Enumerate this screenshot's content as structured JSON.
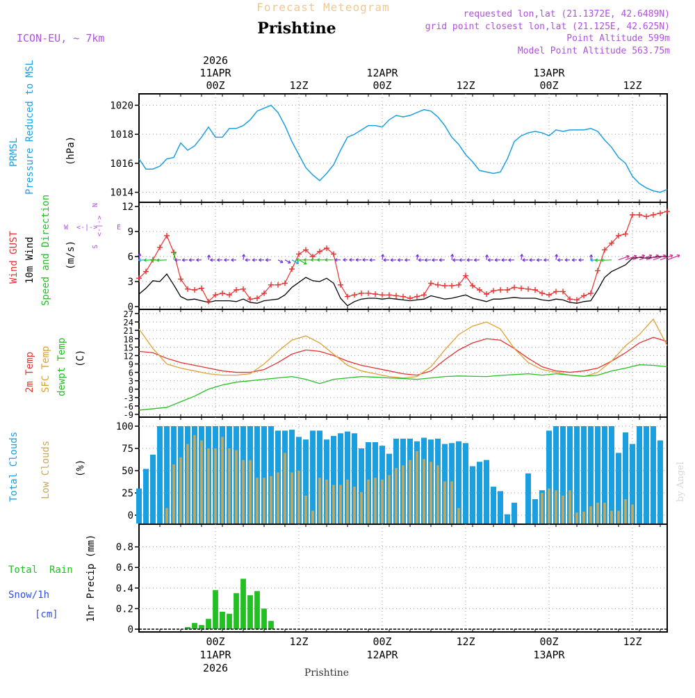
{
  "header": {
    "top_title": "Forecast Meteogram",
    "station": "Prishtine",
    "model": "ICON-EU, ~ 7km",
    "requested": "requested lon,lat (21.1372E, 42.6489N)",
    "grid_point": "grid point closest lon,lat (21.125E, 42.625N)",
    "point_alt": "Point Altitude 599m",
    "model_alt": "Model Point Altitude 563.75m",
    "footer_station": "Prishtine",
    "watermark": "by Angel"
  },
  "time_axis": {
    "year": "2026",
    "ticks": [
      {
        "h": 24,
        "label": "00Z",
        "date": "11APR",
        "year": "2026"
      },
      {
        "h": 36,
        "label": "12Z"
      },
      {
        "h": 48,
        "label": "00Z",
        "date": "12APR"
      },
      {
        "h": 60,
        "label": "12Z"
      },
      {
        "h": 72,
        "label": "00Z",
        "date": "13APR"
      },
      {
        "h": 84,
        "label": "12Z"
      }
    ],
    "start_hour": 13,
    "end_hour": 89
  },
  "labels": {
    "prmsl": "PRMSL",
    "prmsl_desc": "Pressure Reduced to MSL",
    "prmsl_unit": "(hPa)",
    "gust": "Wind GUST",
    "wind10": "10m Wind",
    "wind_dir": "Speed and Direction",
    "wind_unit": "(m/s)",
    "compass_n": "N",
    "compass_s": "S",
    "compass_w": "W",
    "compass_e": "E",
    "t2m": "2m Temp",
    "tsfc": "SFC Temp",
    "td": "dewpt Temp",
    "temp_unit": "(C)",
    "total_clouds": "Total Clouds",
    "low_clouds": "Low Clouds",
    "cloud_unit": "(%)",
    "total_rain": "Total  Rain",
    "snow": "Snow/1h",
    "snow_unit": "[cm]",
    "precip": "1hr Precip (mm)"
  },
  "colors": {
    "pressure": "#1a9fe0",
    "gust": "#e83030",
    "wind": "#000000",
    "t2m": "#e83030",
    "tsfc": "#e0a030",
    "td": "#22c022",
    "total_cloud": "#1a9fe0",
    "low_cloud": "#c8a858",
    "rain": "#22c022",
    "snow": "#3050e0",
    "magenta": "#b050e0"
  },
  "chart_data": [
    {
      "type": "line",
      "title": "PRMSL Pressure Reduced to MSL",
      "ylabel": "(hPa)",
      "ylim": [
        1013.5,
        1020.5
      ],
      "yticks": [
        1014,
        1016,
        1018,
        1020
      ],
      "x": [
        13,
        14,
        15,
        16,
        17,
        18,
        19,
        20,
        21,
        22,
        23,
        24,
        25,
        26,
        27,
        28,
        29,
        30,
        31,
        32,
        33,
        34,
        35,
        36,
        37,
        38,
        39,
        40,
        41,
        42,
        43,
        44,
        45,
        46,
        47,
        48,
        49,
        50,
        51,
        52,
        53,
        54,
        55,
        56,
        57,
        58,
        59,
        60,
        61,
        62,
        63,
        64,
        65,
        66,
        67,
        68,
        69,
        70,
        71,
        72,
        73,
        74,
        75,
        76,
        77,
        78,
        79,
        80,
        81,
        82,
        83,
        84,
        85,
        86,
        87,
        88,
        89
      ],
      "series": [
        {
          "name": "PRMSL",
          "values": [
            1016.3,
            1015.6,
            1015.6,
            1015.8,
            1016.3,
            1016.4,
            1017.4,
            1016.9,
            1017.2,
            1017.8,
            1018.5,
            1017.8,
            1017.8,
            1018.4,
            1018.4,
            1018.6,
            1019.0,
            1019.6,
            1019.8,
            1020.0,
            1019.5,
            1018.6,
            1017.5,
            1016.6,
            1015.7,
            1015.2,
            1014.8,
            1015.3,
            1015.9,
            1016.9,
            1017.8,
            1018.0,
            1018.3,
            1018.6,
            1018.6,
            1018.5,
            1019.0,
            1019.3,
            1019.2,
            1019.3,
            1019.5,
            1019.7,
            1019.6,
            1019.2,
            1018.6,
            1017.8,
            1017.3,
            1016.6,
            1016.1,
            1015.5,
            1015.4,
            1015.3,
            1015.4,
            1016.3,
            1017.5,
            1017.9,
            1018.1,
            1018.2,
            1018.1,
            1017.9,
            1018.3,
            1018.2,
            1018.3,
            1018.3,
            1018.3,
            1018.4,
            1018.2,
            1017.6,
            1017.1,
            1016.4,
            1016.0,
            1015.1,
            1014.6,
            1014.3,
            1014.1,
            1014.0,
            1014.2
          ]
        }
      ]
    },
    {
      "type": "line",
      "title": "Wind GUST / 10m Wind Speed and Direction",
      "ylabel": "(m/s)",
      "ylim": [
        0,
        12
      ],
      "yticks": [
        0,
        3,
        6,
        9,
        12
      ],
      "x": [
        13,
        14,
        15,
        16,
        17,
        18,
        19,
        20,
        21,
        22,
        23,
        24,
        25,
        26,
        27,
        28,
        29,
        30,
        31,
        32,
        33,
        34,
        35,
        36,
        37,
        38,
        39,
        40,
        41,
        42,
        43,
        44,
        45,
        46,
        47,
        48,
        49,
        50,
        51,
        52,
        53,
        54,
        55,
        56,
        57,
        58,
        59,
        60,
        61,
        62,
        63,
        64,
        65,
        66,
        67,
        68,
        69,
        70,
        71,
        72,
        73,
        74,
        75,
        76,
        77,
        78,
        79,
        80,
        81,
        82,
        83,
        84,
        85,
        86,
        87,
        88,
        89
      ],
      "series": [
        {
          "name": "Wind GUST",
          "values": [
            3.4,
            4.2,
            5.6,
            7.1,
            8.5,
            6.5,
            3.3,
            2.1,
            2.0,
            2.2,
            0.6,
            1.4,
            1.6,
            1.4,
            2.0,
            2.1,
            0.9,
            1.0,
            1.6,
            2.6,
            2.6,
            2.8,
            4.5,
            6.3,
            6.8,
            6.0,
            6.6,
            7.0,
            6.3,
            2.6,
            1.2,
            1.4,
            1.6,
            1.6,
            1.5,
            1.4,
            1.4,
            1.3,
            1.2,
            1.0,
            1.2,
            1.4,
            2.8,
            2.6,
            2.5,
            2.5,
            2.6,
            3.7,
            2.5,
            2.0,
            1.5,
            1.9,
            2.0,
            2.0,
            2.3,
            2.2,
            2.1,
            2.0,
            1.6,
            1.4,
            1.8,
            1.8,
            0.9,
            0.8,
            1.3,
            1.6,
            4.3,
            6.8,
            7.6,
            8.5,
            8.7,
            11.0,
            11.0,
            10.8,
            11.0,
            11.2,
            11.4
          ]
        },
        {
          "name": "10m Wind",
          "values": [
            1.5,
            2.2,
            3.1,
            3.0,
            3.9,
            2.6,
            1.2,
            0.8,
            0.9,
            0.7,
            0.5,
            0.7,
            0.7,
            0.7,
            0.6,
            0.9,
            0.5,
            0.4,
            0.7,
            0.8,
            0.9,
            1.4,
            2.3,
            2.9,
            3.5,
            3.1,
            3.0,
            3.4,
            2.8,
            1.0,
            0.1,
            0.6,
            0.9,
            1.0,
            1.0,
            0.9,
            1.0,
            0.9,
            0.8,
            0.7,
            0.8,
            0.9,
            1.3,
            1.1,
            0.9,
            1.0,
            1.2,
            1.4,
            1.0,
            0.8,
            0.6,
            0.9,
            0.9,
            1.0,
            1.1,
            1.0,
            1.0,
            1.0,
            0.8,
            0.7,
            0.9,
            0.8,
            0.5,
            0.4,
            0.6,
            0.7,
            2.0,
            3.5,
            4.2,
            4.6,
            5.0,
            5.8,
            5.9,
            5.8,
            5.9,
            6.0,
            6.0
          ]
        }
      ]
    },
    {
      "type": "line",
      "title": "2m Temp / SFC Temp / dewpt Temp",
      "ylabel": "(C)",
      "ylim": [
        -9,
        27
      ],
      "yticks": [
        -9,
        -6,
        -3,
        0,
        3,
        6,
        9,
        12,
        15,
        18,
        21,
        24,
        27
      ],
      "x": [
        13,
        15,
        17,
        19,
        21,
        23,
        25,
        27,
        29,
        31,
        33,
        35,
        37,
        39,
        41,
        43,
        45,
        47,
        49,
        51,
        53,
        55,
        57,
        59,
        61,
        63,
        65,
        67,
        69,
        71,
        73,
        75,
        77,
        79,
        81,
        83,
        85,
        87,
        89
      ],
      "series": [
        {
          "name": "2m Temp",
          "values": [
            13.5,
            13.0,
            11.0,
            9.5,
            8.5,
            7.5,
            6.5,
            6.0,
            6.0,
            7.0,
            9.5,
            12.5,
            14.0,
            13.5,
            12.0,
            10.0,
            8.5,
            7.5,
            6.5,
            5.5,
            5.0,
            6.5,
            10.5,
            14.0,
            16.5,
            18.0,
            17.5,
            14.5,
            11.0,
            8.0,
            6.5,
            6.0,
            6.5,
            7.5,
            10.0,
            13.0,
            16.5,
            18.5,
            17.0
          ]
        },
        {
          "name": "SFC Temp",
          "values": [
            21.5,
            14.5,
            9.0,
            7.5,
            6.5,
            5.5,
            5.0,
            5.0,
            5.5,
            9.0,
            13.5,
            17.5,
            19.0,
            16.5,
            12.5,
            8.5,
            6.5,
            5.5,
            4.5,
            4.0,
            4.5,
            8.0,
            14.0,
            19.5,
            22.5,
            24.0,
            21.5,
            14.5,
            9.5,
            7.0,
            6.0,
            5.0,
            4.5,
            6.0,
            10.0,
            15.5,
            19.5,
            25.0,
            15.5
          ]
        },
        {
          "name": "dewpt Temp",
          "values": [
            -7.5,
            -7.0,
            -6.5,
            -4.5,
            -2.5,
            0.0,
            1.5,
            2.5,
            3.0,
            3.5,
            4.0,
            4.5,
            3.5,
            2.0,
            3.5,
            4.0,
            4.5,
            4.3,
            4.0,
            3.8,
            3.5,
            4.0,
            4.5,
            4.7,
            4.6,
            4.5,
            4.9,
            5.2,
            5.5,
            5.0,
            5.5,
            5.0,
            4.6,
            5.0,
            6.5,
            7.5,
            8.7,
            8.5,
            8.0
          ]
        }
      ]
    },
    {
      "type": "bar",
      "title": "Total Clouds / Low Clouds",
      "ylabel": "(%)",
      "ylim": [
        0,
        100
      ],
      "yticks": [
        0,
        25,
        50,
        75,
        100
      ],
      "x": [
        13,
        14,
        15,
        16,
        17,
        18,
        19,
        20,
        21,
        22,
        23,
        24,
        25,
        26,
        27,
        28,
        29,
        30,
        31,
        32,
        33,
        34,
        35,
        36,
        37,
        38,
        39,
        40,
        41,
        42,
        43,
        44,
        45,
        46,
        47,
        48,
        49,
        50,
        51,
        52,
        53,
        54,
        55,
        56,
        57,
        58,
        59,
        60,
        61,
        62,
        63,
        64,
        65,
        66,
        67,
        68,
        69,
        70,
        71,
        72,
        73,
        74,
        75,
        76,
        77,
        78,
        79,
        80,
        81,
        82,
        83,
        84,
        85,
        86,
        87,
        88,
        89
      ],
      "series": [
        {
          "name": "Total Clouds",
          "values": [
            30,
            52,
            68,
            100,
            100,
            100,
            100,
            100,
            100,
            100,
            100,
            100,
            100,
            100,
            100,
            100,
            100,
            100,
            100,
            100,
            95,
            95,
            96,
            88,
            85,
            95,
            95,
            85,
            89,
            92,
            94,
            92,
            75,
            82,
            82,
            78,
            69,
            86,
            86,
            86,
            83,
            87,
            85,
            86,
            80,
            81,
            83,
            81,
            55,
            60,
            62,
            32,
            27,
            1,
            14,
            0,
            47,
            18,
            28,
            95,
            100,
            100,
            100,
            100,
            100,
            100,
            100,
            100,
            100,
            70,
            93,
            80,
            100,
            100,
            100,
            84,
            0
          ]
        },
        {
          "name": "Low Clouds",
          "values": [
            0,
            0,
            0,
            0,
            8,
            57,
            65,
            80,
            90,
            84,
            75,
            75,
            88,
            75,
            73,
            62,
            62,
            42,
            42,
            44,
            48,
            70,
            48,
            50,
            22,
            5,
            42,
            40,
            34,
            34,
            40,
            32,
            26,
            40,
            42,
            40,
            45,
            53,
            56,
            62,
            72,
            63,
            60,
            56,
            38,
            38,
            8,
            0,
            0,
            0,
            0,
            0,
            0,
            0,
            0,
            0,
            0,
            0,
            25,
            30,
            28,
            22,
            28,
            3,
            4,
            10,
            14,
            14,
            5,
            5,
            18,
            12,
            0,
            0,
            0,
            0,
            0
          ]
        }
      ]
    },
    {
      "type": "bar",
      "title": "Total Rain / Snow per 1h",
      "ylabel": "1hr Precip (mm)",
      "ylim": [
        0,
        0.98
      ],
      "yticks": [
        0,
        0.2,
        0.4,
        0.6,
        0.8
      ],
      "x": [
        13,
        14,
        15,
        16,
        17,
        18,
        19,
        20,
        21,
        22,
        23,
        24,
        25,
        26,
        27,
        28,
        29,
        30,
        31,
        32,
        33,
        34,
        35,
        36,
        37,
        38,
        39,
        40,
        41,
        42,
        43,
        44,
        45,
        46,
        47,
        48,
        49,
        50,
        51,
        52,
        53,
        54,
        55,
        56,
        57,
        58,
        59,
        60,
        61,
        62,
        63,
        64,
        65,
        66,
        67,
        68,
        69,
        70,
        71,
        72,
        73,
        74,
        75,
        76,
        77,
        78,
        79,
        80,
        81,
        82,
        83,
        84,
        85,
        86,
        87,
        88,
        89
      ],
      "series": [
        {
          "name": "Total Rain",
          "values": [
            0,
            0,
            0,
            0,
            0,
            0,
            0,
            0.02,
            0.06,
            0.04,
            0.1,
            0.38,
            0.17,
            0.15,
            0.35,
            0.49,
            0.33,
            0.37,
            0.2,
            0.08,
            0,
            0,
            0,
            0,
            0,
            0,
            0,
            0,
            0,
            0,
            0,
            0,
            0,
            0,
            0,
            0,
            0,
            0,
            0,
            0,
            0,
            0,
            0,
            0,
            0,
            0,
            0,
            0,
            0,
            0,
            0,
            0,
            0,
            0,
            0,
            0,
            0,
            0,
            0,
            0,
            0,
            0,
            0,
            0,
            0,
            0,
            0,
            0,
            0,
            0,
            0,
            0,
            0,
            0,
            0,
            0,
            0
          ]
        },
        {
          "name": "Snow/1h",
          "values": [
            0,
            0,
            0,
            0,
            0,
            0,
            0,
            0,
            0,
            0,
            0,
            0,
            0,
            0,
            0,
            0,
            0,
            0,
            0,
            0,
            0,
            0,
            0,
            0,
            0,
            0,
            0,
            0,
            0,
            0,
            0,
            0,
            0,
            0,
            0,
            0,
            0,
            0,
            0,
            0,
            0,
            0,
            0,
            0,
            0,
            0,
            0,
            0,
            0,
            0,
            0,
            0,
            0,
            0,
            0,
            0,
            0,
            0,
            0,
            0,
            0,
            0,
            0,
            0,
            0,
            0,
            0,
            0,
            0,
            0,
            0,
            0,
            0,
            0,
            0,
            0,
            0
          ]
        }
      ]
    }
  ]
}
